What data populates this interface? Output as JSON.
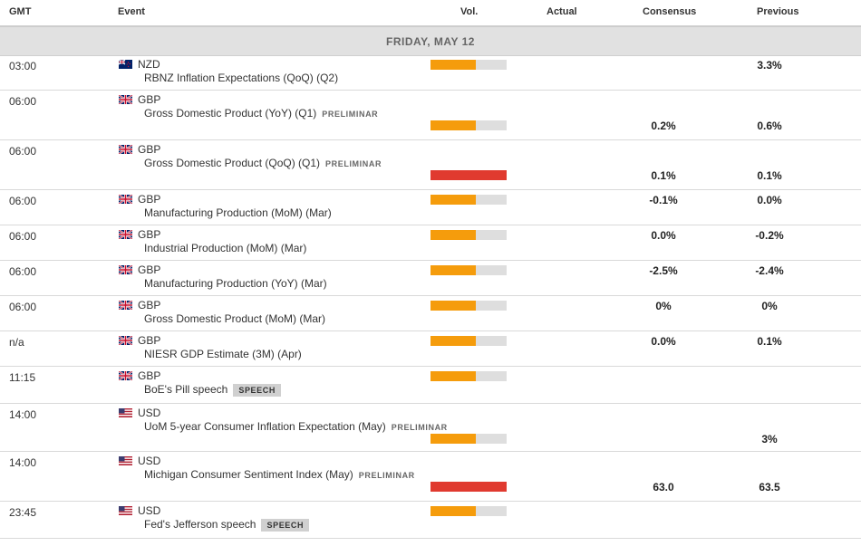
{
  "columns": {
    "gmt": "GMT",
    "event": "Event",
    "vol": "Vol.",
    "actual": "Actual",
    "consensus": "Consensus",
    "previous": "Previous"
  },
  "day": "FRIDAY, MAY 12",
  "colors": {
    "high": "#e03a2f",
    "medium": "#f59c0c",
    "empty": "#dedede"
  },
  "events": [
    {
      "time": "03:00",
      "flag": "nz-flag-icon",
      "currency": "NZD",
      "name": "RBNZ Inflation Expectations (QoQ) (Q2)",
      "tag": "",
      "speech": "",
      "volatility": 0.6,
      "level": "medium",
      "actual": "",
      "consensus": "",
      "previous": "3.3%"
    },
    {
      "time": "06:00",
      "flag": "uk-flag-icon",
      "currency": "GBP",
      "name": "Gross Domestic Product (YoY) (Q1)",
      "tag": "PRELIMINAR",
      "speech": "",
      "volatility": 0.6,
      "level": "medium",
      "actual": "",
      "consensus": "0.2%",
      "previous": "0.6%"
    },
    {
      "time": "06:00",
      "flag": "uk-flag-icon",
      "currency": "GBP",
      "name": "Gross Domestic Product (QoQ) (Q1)",
      "tag": "PRELIMINAR",
      "speech": "",
      "volatility": 1.0,
      "level": "high",
      "actual": "",
      "consensus": "0.1%",
      "previous": "0.1%"
    },
    {
      "time": "06:00",
      "flag": "uk-flag-icon",
      "currency": "GBP",
      "name": "Manufacturing Production (MoM) (Mar)",
      "tag": "",
      "speech": "",
      "volatility": 0.6,
      "level": "medium",
      "actual": "",
      "consensus": "-0.1%",
      "previous": "0.0%"
    },
    {
      "time": "06:00",
      "flag": "uk-flag-icon",
      "currency": "GBP",
      "name": "Industrial Production (MoM) (Mar)",
      "tag": "",
      "speech": "",
      "volatility": 0.6,
      "level": "medium",
      "actual": "",
      "consensus": "0.0%",
      "previous": "-0.2%"
    },
    {
      "time": "06:00",
      "flag": "uk-flag-icon",
      "currency": "GBP",
      "name": "Manufacturing Production (YoY) (Mar)",
      "tag": "",
      "speech": "",
      "volatility": 0.6,
      "level": "medium",
      "actual": "",
      "consensus": "-2.5%",
      "previous": "-2.4%"
    },
    {
      "time": "06:00",
      "flag": "uk-flag-icon",
      "currency": "GBP",
      "name": "Gross Domestic Product (MoM) (Mar)",
      "tag": "",
      "speech": "",
      "volatility": 0.6,
      "level": "medium",
      "actual": "",
      "consensus": "0%",
      "previous": "0%"
    },
    {
      "time": "n/a",
      "flag": "uk-flag-icon",
      "currency": "GBP",
      "name": "NIESR GDP Estimate (3M) (Apr)",
      "tag": "",
      "speech": "",
      "volatility": 0.6,
      "level": "medium",
      "actual": "",
      "consensus": "0.0%",
      "previous": "0.1%"
    },
    {
      "time": "11:15",
      "flag": "uk-flag-icon",
      "currency": "GBP",
      "name": "BoE's Pill speech",
      "tag": "",
      "speech": "SPEECH",
      "volatility": 0.6,
      "level": "medium",
      "actual": "",
      "consensus": "",
      "previous": ""
    },
    {
      "time": "14:00",
      "flag": "us-flag-icon",
      "currency": "USD",
      "name": "UoM 5-year Consumer Inflation Expectation (May)",
      "tag": "PRELIMINAR",
      "speech": "",
      "volatility": 0.6,
      "level": "medium",
      "actual": "",
      "consensus": "",
      "previous": "3%"
    },
    {
      "time": "14:00",
      "flag": "us-flag-icon",
      "currency": "USD",
      "name": "Michigan Consumer Sentiment Index (May)",
      "tag": "PRELIMINAR",
      "speech": "",
      "volatility": 1.0,
      "level": "high",
      "actual": "",
      "consensus": "63.0",
      "previous": "63.5"
    },
    {
      "time": "23:45",
      "flag": "us-flag-icon",
      "currency": "USD",
      "name": "Fed's Jefferson speech",
      "tag": "",
      "speech": "SPEECH",
      "volatility": 0.6,
      "level": "medium",
      "actual": "",
      "consensus": "",
      "previous": ""
    }
  ]
}
